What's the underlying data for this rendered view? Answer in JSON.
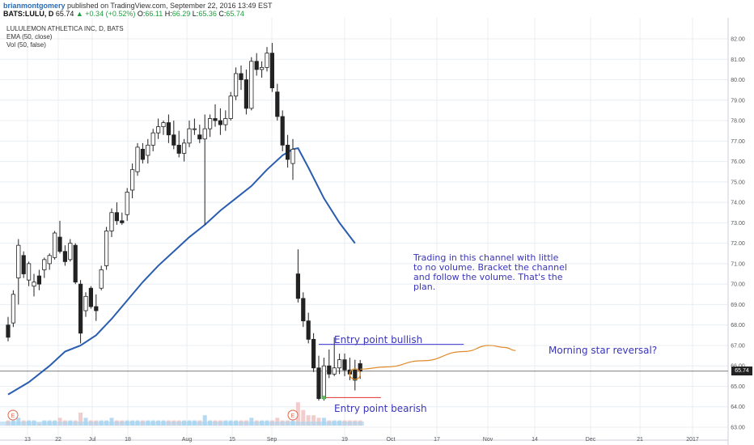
{
  "header": {
    "author": "brianmontgomery",
    "published": "published on TradingView.com, September 22, 2016 13:49 EST",
    "symbol": "BATS:LULU, D",
    "last": "65.74",
    "change": "▲ +0.34 (+0.52%)",
    "o_label": "O:",
    "o_value": "66.11",
    "h_label": "H:",
    "h_value": "66.29",
    "l_label": "L:",
    "l_value": "65.36",
    "c_label": "C:",
    "c_value": "65.74"
  },
  "legend": {
    "title": "LULULEMON ATHLETICA INC, D, BATS",
    "ema": "EMA (50, close)",
    "vol": "Vol (50, false)"
  },
  "annotations": {
    "channel_lines": [
      "Trading in this channel with little",
      "to no volume. Bracket the channel",
      "and follow the volume. That's the",
      "plan."
    ],
    "bullish": "Entry point bullish",
    "bearish": "Entry point bearish",
    "morning": "Morning star reversal?",
    "earnings_marker": "E"
  },
  "price_badge": "65.74",
  "colors": {
    "ema": "#2a5db0",
    "projection": "#e08a2a",
    "annotation": "#3a35b8",
    "bullish_line": "#3a35d0",
    "bearish_line": "#e03030",
    "volume": "#a8d4f0",
    "volume_down": "#f0c4c4",
    "grid": "#e8eef2"
  },
  "chart_data": {
    "type": "candlestick",
    "title": "LULULEMON ATHLETICA INC, D, BATS",
    "y_axis": {
      "min": 63.0,
      "max": 82.0,
      "ticks": [
        "63.00",
        "64.00",
        "65.00",
        "66.00",
        "67.00",
        "68.00",
        "69.00",
        "70.00",
        "71.00",
        "72.00",
        "73.00",
        "74.00",
        "75.00",
        "76.00",
        "77.00",
        "78.00",
        "79.00",
        "80.00",
        "81.00",
        "82.00"
      ]
    },
    "x_ticks": [
      "13",
      "22",
      "Jul",
      "18",
      "Aug",
      "15",
      "Sep",
      "19",
      "Oct",
      "17",
      "Nov",
      "14",
      "Dec",
      "21",
      "2017"
    ],
    "candles": [
      {
        "o": 68.0,
        "h": 68.4,
        "l": 67.2,
        "c": 67.4
      },
      {
        "o": 68.1,
        "h": 69.7,
        "l": 67.9,
        "c": 69.5
      },
      {
        "o": 70.3,
        "h": 72.2,
        "l": 69.0,
        "c": 71.9
      },
      {
        "o": 71.4,
        "h": 71.6,
        "l": 70.3,
        "c": 70.5
      },
      {
        "o": 70.2,
        "h": 71.1,
        "l": 69.9,
        "c": 71.0
      },
      {
        "o": 69.9,
        "h": 70.5,
        "l": 69.4,
        "c": 70.1
      },
      {
        "o": 70.4,
        "h": 70.7,
        "l": 69.7,
        "c": 70.0
      },
      {
        "o": 70.7,
        "h": 71.3,
        "l": 70.3,
        "c": 71.2
      },
      {
        "o": 71.0,
        "h": 71.5,
        "l": 70.7,
        "c": 71.4
      },
      {
        "o": 71.3,
        "h": 72.6,
        "l": 71.2,
        "c": 72.5
      },
      {
        "o": 72.3,
        "h": 73.1,
        "l": 71.5,
        "c": 71.6
      },
      {
        "o": 71.6,
        "h": 71.9,
        "l": 70.9,
        "c": 71.1
      },
      {
        "o": 71.2,
        "h": 72.2,
        "l": 71.1,
        "c": 72.0
      },
      {
        "o": 71.9,
        "h": 72.0,
        "l": 70.0,
        "c": 70.1
      },
      {
        "o": 70.0,
        "h": 70.2,
        "l": 67.1,
        "c": 67.6
      },
      {
        "o": 68.7,
        "h": 69.6,
        "l": 68.4,
        "c": 69.4
      },
      {
        "o": 69.8,
        "h": 69.9,
        "l": 68.8,
        "c": 68.9
      },
      {
        "o": 68.9,
        "h": 69.5,
        "l": 68.2,
        "c": 68.7
      },
      {
        "o": 69.8,
        "h": 70.9,
        "l": 69.7,
        "c": 70.7
      },
      {
        "o": 70.9,
        "h": 72.8,
        "l": 70.7,
        "c": 72.6
      },
      {
        "o": 72.6,
        "h": 73.7,
        "l": 72.3,
        "c": 73.5
      },
      {
        "o": 73.5,
        "h": 74.0,
        "l": 72.9,
        "c": 73.1
      },
      {
        "o": 73.1,
        "h": 73.5,
        "l": 72.9,
        "c": 73.0
      },
      {
        "o": 73.4,
        "h": 74.7,
        "l": 73.1,
        "c": 74.5
      },
      {
        "o": 74.6,
        "h": 75.9,
        "l": 74.2,
        "c": 75.6
      },
      {
        "o": 75.5,
        "h": 76.9,
        "l": 75.3,
        "c": 76.7
      },
      {
        "o": 76.6,
        "h": 76.9,
        "l": 75.9,
        "c": 76.1
      },
      {
        "o": 76.3,
        "h": 77.1,
        "l": 75.9,
        "c": 76.8
      },
      {
        "o": 76.8,
        "h": 77.6,
        "l": 76.5,
        "c": 77.4
      },
      {
        "o": 77.4,
        "h": 78.1,
        "l": 77.1,
        "c": 77.7
      },
      {
        "o": 77.7,
        "h": 78.0,
        "l": 77.3,
        "c": 77.9
      },
      {
        "o": 77.9,
        "h": 78.3,
        "l": 76.9,
        "c": 77.3
      },
      {
        "o": 77.3,
        "h": 78.0,
        "l": 76.6,
        "c": 76.8
      },
      {
        "o": 76.8,
        "h": 77.5,
        "l": 76.2,
        "c": 76.4
      },
      {
        "o": 76.4,
        "h": 77.1,
        "l": 76.0,
        "c": 76.9
      },
      {
        "o": 76.9,
        "h": 78.0,
        "l": 76.7,
        "c": 77.6
      },
      {
        "o": 77.6,
        "h": 78.1,
        "l": 77.3,
        "c": 77.6
      },
      {
        "o": 77.3,
        "h": 77.8,
        "l": 76.9,
        "c": 77.1
      },
      {
        "o": 77.1,
        "h": 78.3,
        "l": 72.9,
        "c": 77.6
      },
      {
        "o": 77.6,
        "h": 78.3,
        "l": 77.2,
        "c": 78.1
      },
      {
        "o": 78.1,
        "h": 78.8,
        "l": 77.7,
        "c": 78.0
      },
      {
        "o": 78.0,
        "h": 78.6,
        "l": 77.3,
        "c": 77.8
      },
      {
        "o": 77.8,
        "h": 78.5,
        "l": 77.5,
        "c": 78.1
      },
      {
        "o": 78.1,
        "h": 79.4,
        "l": 78.0,
        "c": 79.2
      },
      {
        "o": 79.2,
        "h": 80.6,
        "l": 79.0,
        "c": 80.3
      },
      {
        "o": 80.3,
        "h": 80.7,
        "l": 79.5,
        "c": 80.0
      },
      {
        "o": 80.0,
        "h": 80.5,
        "l": 78.3,
        "c": 78.6
      },
      {
        "o": 78.6,
        "h": 81.1,
        "l": 78.5,
        "c": 80.9
      },
      {
        "o": 80.9,
        "h": 81.3,
        "l": 80.2,
        "c": 80.5
      },
      {
        "o": 80.5,
        "h": 80.9,
        "l": 80.1,
        "c": 80.6
      },
      {
        "o": 80.6,
        "h": 81.6,
        "l": 80.4,
        "c": 81.3
      },
      {
        "o": 81.3,
        "h": 81.8,
        "l": 79.4,
        "c": 79.6
      },
      {
        "o": 79.4,
        "h": 79.8,
        "l": 78.0,
        "c": 78.2
      },
      {
        "o": 78.2,
        "h": 78.5,
        "l": 76.5,
        "c": 76.8
      },
      {
        "o": 76.8,
        "h": 77.3,
        "l": 75.7,
        "c": 76.1
      },
      {
        "o": 75.9,
        "h": 77.1,
        "l": 75.1,
        "c": 76.6
      },
      {
        "o": 70.5,
        "h": 71.7,
        "l": 69.1,
        "c": 69.3
      },
      {
        "o": 69.3,
        "h": 69.6,
        "l": 67.9,
        "c": 68.2
      },
      {
        "o": 68.2,
        "h": 68.6,
        "l": 67.1,
        "c": 67.3
      },
      {
        "o": 67.3,
        "h": 67.6,
        "l": 65.7,
        "c": 65.9
      },
      {
        "o": 65.9,
        "h": 66.5,
        "l": 64.3,
        "c": 64.4
      },
      {
        "o": 64.4,
        "h": 66.4,
        "l": 64.3,
        "c": 66.0
      },
      {
        "o": 66.0,
        "h": 66.8,
        "l": 65.4,
        "c": 65.6
      },
      {
        "o": 65.6,
        "h": 67.4,
        "l": 65.5,
        "c": 65.9
      },
      {
        "o": 65.9,
        "h": 66.6,
        "l": 65.6,
        "c": 66.3
      },
      {
        "o": 66.3,
        "h": 66.6,
        "l": 65.5,
        "c": 65.8
      },
      {
        "o": 65.8,
        "h": 66.4,
        "l": 65.3,
        "c": 65.6
      },
      {
        "o": 65.8,
        "h": 66.3,
        "l": 64.8,
        "c": 65.3
      },
      {
        "o": 66.11,
        "h": 66.29,
        "l": 65.36,
        "c": 65.74
      }
    ],
    "ema_50": [
      {
        "i": 0,
        "v": 64.6
      },
      {
        "i": 4,
        "v": 65.2
      },
      {
        "i": 8,
        "v": 66.0
      },
      {
        "i": 11,
        "v": 66.7
      },
      {
        "i": 14,
        "v": 67.0
      },
      {
        "i": 17,
        "v": 67.5
      },
      {
        "i": 20,
        "v": 68.3
      },
      {
        "i": 23,
        "v": 69.2
      },
      {
        "i": 26,
        "v": 70.1
      },
      {
        "i": 29,
        "v": 70.9
      },
      {
        "i": 32,
        "v": 71.6
      },
      {
        "i": 35,
        "v": 72.3
      },
      {
        "i": 38,
        "v": 72.9
      },
      {
        "i": 41,
        "v": 73.6
      },
      {
        "i": 44,
        "v": 74.2
      },
      {
        "i": 47,
        "v": 74.8
      },
      {
        "i": 50,
        "v": 75.6
      },
      {
        "i": 53,
        "v": 76.3
      },
      {
        "i": 55,
        "v": 76.6
      },
      {
        "i": 56,
        "v": 76.65
      },
      {
        "i": 58,
        "v": 75.7
      },
      {
        "i": 61,
        "v": 74.2
      },
      {
        "i": 64,
        "v": 73.0
      },
      {
        "i": 67,
        "v": 72.0
      }
    ],
    "projection_path": [
      {
        "i": 68,
        "v": 65.84
      },
      {
        "i": 73,
        "v": 65.95
      },
      {
        "i": 80,
        "v": 66.25
      },
      {
        "i": 88,
        "v": 66.7
      },
      {
        "i": 93,
        "v": 67.0
      },
      {
        "i": 96,
        "v": 66.9
      },
      {
        "i": 98,
        "v": 66.75
      }
    ],
    "bullish_level": {
      "value": 67.05,
      "from": 60,
      "to": 88
    },
    "bearish_level": {
      "value": 64.45,
      "from": 61,
      "to": 72
    },
    "current_price": 65.74,
    "volume": [
      2,
      2,
      3,
      2,
      2,
      2,
      1,
      2,
      2,
      2,
      3,
      2,
      2,
      2,
      5,
      3,
      2,
      2,
      2,
      2,
      3,
      2,
      2,
      2,
      2,
      2,
      2,
      2,
      2,
      2,
      2,
      2,
      2,
      2,
      2,
      2,
      2,
      2,
      4,
      2,
      2,
      2,
      2,
      2,
      2,
      2,
      2,
      3,
      2,
      2,
      2,
      2,
      3,
      2,
      2,
      2,
      9,
      6,
      4,
      4,
      3,
      3,
      2,
      2,
      2,
      2,
      2,
      2,
      2
    ]
  }
}
